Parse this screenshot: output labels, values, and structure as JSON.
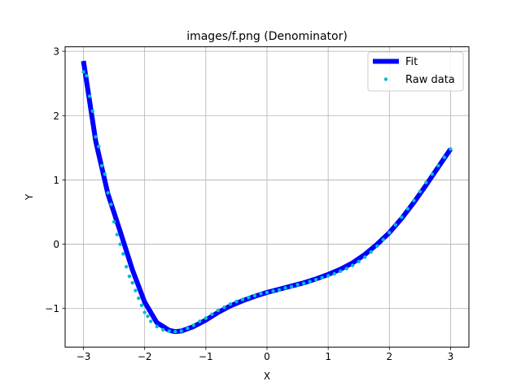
{
  "chart_data": {
    "type": "line",
    "title": "images/f.png (Denominator)",
    "xlabel": "X",
    "ylabel": "Y",
    "xlim": [
      -3.3,
      3.3
    ],
    "ylim": [
      -1.6,
      3.07
    ],
    "xticks": [
      -3,
      -2,
      -1,
      0,
      1,
      2,
      3
    ],
    "xtick_labels": [
      "−3",
      "−2",
      "−1",
      "0",
      "1",
      "2",
      "3"
    ],
    "yticks": [
      -1,
      0,
      1,
      2,
      3
    ],
    "ytick_labels": [
      "−1",
      "0",
      "1",
      "2",
      "3"
    ],
    "grid": true,
    "legend": "top-right",
    "series": [
      {
        "name": "Fit",
        "style": "line",
        "color": "#0000ff",
        "x": [
          -3.0,
          -2.8,
          -2.6,
          -2.4,
          -2.2,
          -2.0,
          -1.8,
          -1.6,
          -1.5,
          -1.4,
          -1.2,
          -1.0,
          -0.8,
          -0.6,
          -0.4,
          -0.2,
          0.0,
          0.2,
          0.4,
          0.6,
          0.8,
          1.0,
          1.2,
          1.4,
          1.6,
          1.8,
          2.0,
          2.2,
          2.4,
          2.6,
          2.8,
          3.0
        ],
        "y": [
          2.85,
          1.6,
          0.78,
          0.2,
          -0.4,
          -0.9,
          -1.22,
          -1.34,
          -1.36,
          -1.35,
          -1.28,
          -1.18,
          -1.06,
          -0.96,
          -0.88,
          -0.81,
          -0.75,
          -0.7,
          -0.65,
          -0.6,
          -0.54,
          -0.47,
          -0.39,
          -0.29,
          -0.16,
          0.0,
          0.18,
          0.4,
          0.65,
          0.92,
          1.2,
          1.48
        ]
      },
      {
        "name": "Raw data",
        "style": "markers",
        "color": "#00bcd4",
        "x": [
          -3.0,
          -2.95,
          -2.9,
          -2.85,
          -2.8,
          -2.75,
          -2.7,
          -2.65,
          -2.6,
          -2.55,
          -2.5,
          -2.45,
          -2.4,
          -2.35,
          -2.3,
          -2.25,
          -2.2,
          -2.15,
          -2.1,
          -2.05,
          -2.0,
          -1.95,
          -1.9,
          -1.8,
          -1.7,
          -1.6,
          -1.5,
          -1.4,
          -1.3,
          -1.2,
          -1.1,
          -1.0,
          -0.9,
          -0.8,
          -0.7,
          -0.6,
          -0.5,
          -0.4,
          -0.3,
          -0.2,
          -0.1,
          0.0,
          0.1,
          0.2,
          0.3,
          0.4,
          0.5,
          0.6,
          0.7,
          0.8,
          0.9,
          1.0,
          1.1,
          1.2,
          1.3,
          1.4,
          1.5,
          1.6,
          1.7,
          1.8,
          1.9,
          2.0,
          2.1,
          2.2,
          2.3,
          2.4,
          2.5,
          2.6,
          2.7,
          2.8,
          2.9,
          3.0
        ],
        "y": [
          2.68,
          2.62,
          2.3,
          2.07,
          1.67,
          1.52,
          1.22,
          1.09,
          0.8,
          0.62,
          0.35,
          0.15,
          0.0,
          -0.15,
          -0.35,
          -0.5,
          -0.6,
          -0.72,
          -0.84,
          -0.95,
          -1.06,
          -1.12,
          -1.2,
          -1.28,
          -1.33,
          -1.35,
          -1.36,
          -1.35,
          -1.31,
          -1.26,
          -1.2,
          -1.15,
          -1.09,
          -1.03,
          -0.98,
          -0.93,
          -0.89,
          -0.86,
          -0.83,
          -0.8,
          -0.77,
          -0.75,
          -0.73,
          -0.71,
          -0.68,
          -0.66,
          -0.63,
          -0.61,
          -0.58,
          -0.55,
          -0.52,
          -0.49,
          -0.46,
          -0.42,
          -0.38,
          -0.33,
          -0.27,
          -0.2,
          -0.12,
          -0.03,
          0.07,
          0.18,
          0.3,
          0.42,
          0.55,
          0.68,
          0.82,
          0.96,
          1.09,
          1.22,
          1.35,
          1.48
        ]
      }
    ]
  }
}
